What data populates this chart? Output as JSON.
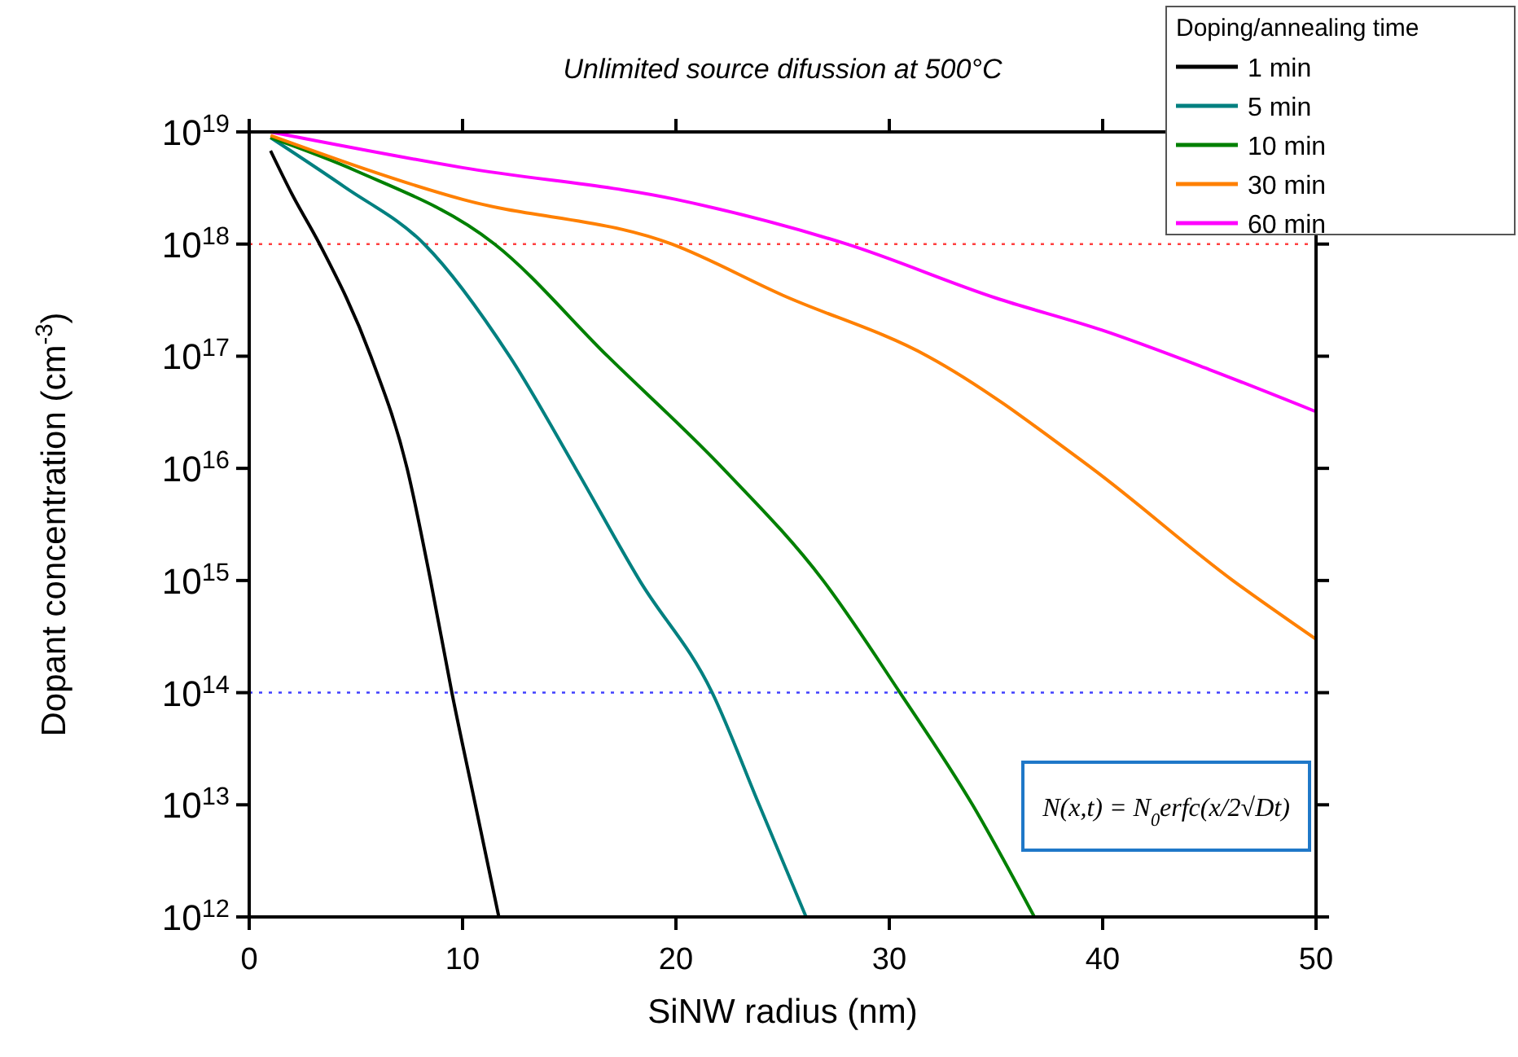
{
  "chart_data": {
    "type": "line",
    "title": "Unlimited source difussion at 500°C",
    "xlabel": "SiNW radius (nm)",
    "ylabel": "Dopant concentration (cm$^{-3}$)",
    "legend_title": "Doping/annealing time",
    "log": "y",
    "xlim": [
      0,
      50
    ],
    "xticks": [
      0,
      10,
      20,
      30,
      40,
      50
    ],
    "ylim": [
      1000000000000.0,
      1e+19
    ],
    "yticks": [
      {
        "value": 1000000000000.0,
        "label": "10$^{12}$"
      },
      {
        "value": 10000000000000.0,
        "label": "10$^{13}$"
      },
      {
        "value": 100000000000000.0,
        "label": "10$^{14}$"
      },
      {
        "value": 1000000000000000.0,
        "label": "10$^{15}$"
      },
      {
        "value": 1e+16,
        "label": "10$^{16}$"
      },
      {
        "value": 1e+17,
        "label": "10$^{17}$"
      },
      {
        "value": 1e+18,
        "label": "10$^{18}$"
      },
      {
        "value": 1e+19,
        "label": "10$^{19}$"
      }
    ],
    "legend": "top right",
    "grid": false,
    "ref_lines": [
      {
        "axis": "y",
        "value": 1e+18,
        "color": "#ff4040",
        "line_style": "dotted"
      },
      {
        "axis": "y",
        "value": 100000000000000.0,
        "color": "#4040ff",
        "line_style": "dotted"
      }
    ],
    "annotations": [
      "N(x,t) = N$_{0}$erfc(x/2√Dt)"
    ],
    "series": [
      {
        "name": "1 min",
        "color": "#000000",
        "x": [
          1,
          2,
          3.3,
          5.7,
          7.4,
          8.5,
          9.5,
          10.6,
          11.7
        ],
        "values": [
          6.8e+18,
          2.8e+18,
          1e+18,
          1e+17,
          1e+16,
          1000000000000000.0,
          100000000000000.0,
          10000000000000.0,
          1000000000000.0
        ]
      },
      {
        "name": "5 min",
        "color": "#008080",
        "x": [
          1,
          4.5,
          8.2,
          12.2,
          15.3,
          18.3,
          21.7,
          23.9,
          26.1
        ],
        "values": [
          8.9e+18,
          3.2e+18,
          1e+18,
          1e+17,
          1e+16,
          1000000000000000.0,
          100000000000000.0,
          10000000000000.0,
          1000000000000.0
        ]
      },
      {
        "name": "10 min",
        "color": "#008000",
        "x": [
          1,
          5,
          11.5,
          16.8,
          22.2,
          26.9,
          30.5,
          33.9,
          36.8
        ],
        "values": [
          8.9e+18,
          4.5e+18,
          1e+18,
          1e+17,
          1e+16,
          1000000000000000.0,
          100000000000000.0,
          10000000000000.0,
          1000000000000.0
        ]
      },
      {
        "name": "30 min",
        "color": "#ff8000",
        "x": [
          1,
          10,
          19.8,
          25,
          31.8,
          39.5,
          46.1,
          50
        ],
        "values": [
          9.3e+18,
          2.5e+18,
          1e+18,
          3.5e+17,
          1e+17,
          1e+16,
          1000000000000000.0,
          300000000000000.0
        ]
      },
      {
        "name": "60 min",
        "color": "#ff00ff",
        "x": [
          1,
          10,
          20,
          28,
          35,
          40,
          45,
          50
        ],
        "values": [
          1e+19,
          4.8e+18,
          2.5e+18,
          1e+18,
          3.3e+17,
          1.7e+17,
          7.6e+16,
          3.2e+16
        ]
      }
    ]
  }
}
